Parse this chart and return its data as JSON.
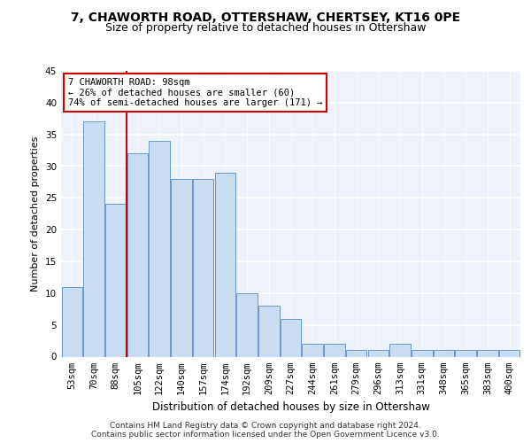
{
  "title": "7, CHAWORTH ROAD, OTTERSHAW, CHERTSEY, KT16 0PE",
  "subtitle": "Size of property relative to detached houses in Ottershaw",
  "xlabel": "Distribution of detached houses by size in Ottershaw",
  "ylabel": "Number of detached properties",
  "categories": [
    "53sqm",
    "70sqm",
    "88sqm",
    "105sqm",
    "122sqm",
    "140sqm",
    "157sqm",
    "174sqm",
    "192sqm",
    "209sqm",
    "227sqm",
    "244sqm",
    "261sqm",
    "279sqm",
    "296sqm",
    "313sqm",
    "331sqm",
    "348sqm",
    "365sqm",
    "383sqm",
    "400sqm"
  ],
  "values": [
    11,
    37,
    24,
    32,
    34,
    28,
    28,
    29,
    10,
    8,
    6,
    2,
    2,
    1,
    1,
    2,
    1,
    1,
    1,
    1,
    1
  ],
  "bar_color": "#c9ddf2",
  "bar_edge_color": "#6699cc",
  "vline_x": 2.5,
  "vline_color": "#cc0000",
  "annotation_text": "7 CHAWORTH ROAD: 98sqm\n← 26% of detached houses are smaller (60)\n74% of semi-detached houses are larger (171) →",
  "annotation_box_color": "#ffffff",
  "annotation_box_edge": "#cc0000",
  "ylim": [
    0,
    45
  ],
  "yticks": [
    0,
    5,
    10,
    15,
    20,
    25,
    30,
    35,
    40,
    45
  ],
  "background_color": "#edf2fb",
  "footer_text": "Contains HM Land Registry data © Crown copyright and database right 2024.\nContains public sector information licensed under the Open Government Licence v3.0.",
  "title_fontsize": 10,
  "subtitle_fontsize": 9,
  "xlabel_fontsize": 8.5,
  "ylabel_fontsize": 8,
  "tick_fontsize": 7.5,
  "annotation_fontsize": 7.5,
  "footer_fontsize": 6.5
}
